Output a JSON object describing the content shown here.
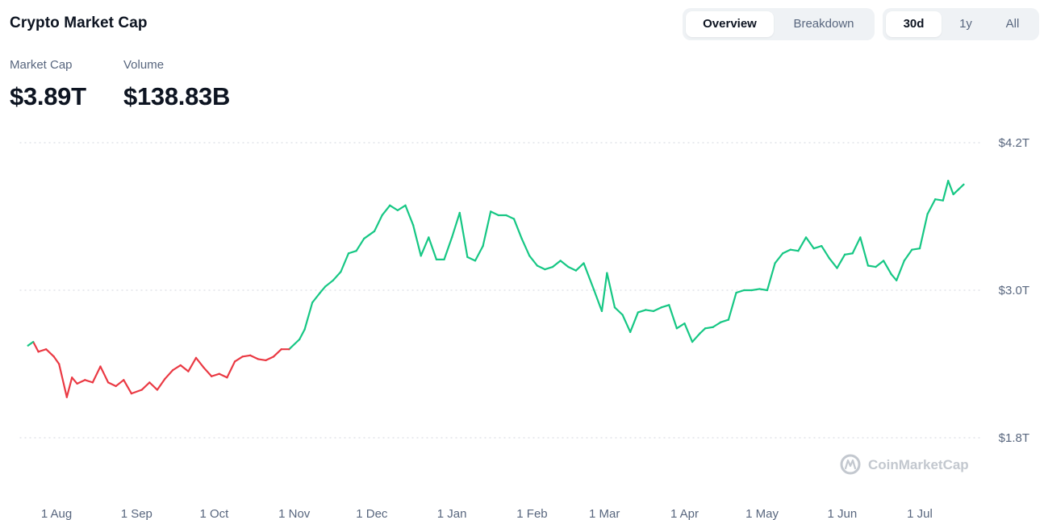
{
  "header": {
    "title": "Crypto Market Cap"
  },
  "tabs": {
    "view": [
      {
        "label": "Overview",
        "active": true
      },
      {
        "label": "Breakdown",
        "active": false
      }
    ],
    "range": [
      {
        "label": "30d",
        "active": true
      },
      {
        "label": "1y",
        "active": false
      },
      {
        "label": "All",
        "active": false
      }
    ]
  },
  "metrics": {
    "market_cap_label": "Market Cap",
    "market_cap_value": "$3.89T",
    "volume_label": "Volume",
    "volume_value": "$138.83B"
  },
  "watermark": {
    "text": "CoinMarketCap",
    "icon": "coinmarketcap-logo-icon"
  },
  "colors": {
    "up": "#16c784",
    "down": "#ea3943",
    "grid": "#d9dde3"
  },
  "chart_data": {
    "type": "line",
    "title": "",
    "xlabel": "",
    "ylabel": "",
    "unit": "USD",
    "y_ticks": [
      {
        "value": 4.2,
        "label": "$4.2T"
      },
      {
        "value": 3.0,
        "label": "$3.0T"
      },
      {
        "value": 1.8,
        "label": "$1.8T"
      }
    ],
    "ylim": [
      1.8,
      4.2
    ],
    "x_ticks": [
      {
        "date": "2024-08-01",
        "label": "1 Aug"
      },
      {
        "date": "2024-09-01",
        "label": "1 Sep"
      },
      {
        "date": "2024-10-01",
        "label": "1 Oct"
      },
      {
        "date": "2024-11-01",
        "label": "1 Nov"
      },
      {
        "date": "2024-12-01",
        "label": "1 Dec"
      },
      {
        "date": "2025-01-01",
        "label": "1 Jan"
      },
      {
        "date": "2025-02-01",
        "label": "1 Feb"
      },
      {
        "date": "2025-03-01",
        "label": "1 Mar"
      },
      {
        "date": "2025-04-01",
        "label": "1 Apr"
      },
      {
        "date": "2025-05-01",
        "label": "1 May"
      },
      {
        "date": "2025-06-01",
        "label": "1 Jun"
      },
      {
        "date": "2025-07-01",
        "label": "1 Jul"
      }
    ],
    "grid": true,
    "reference_value": 2.55,
    "series": [
      {
        "name": "",
        "x": [
          "2024-07-21",
          "2024-07-23",
          "2024-07-25",
          "2024-07-28",
          "2024-07-31",
          "2024-08-02",
          "2024-08-05",
          "2024-08-07",
          "2024-08-09",
          "2024-08-12",
          "2024-08-15",
          "2024-08-18",
          "2024-08-21",
          "2024-08-24",
          "2024-08-27",
          "2024-08-30",
          "2024-09-03",
          "2024-09-06",
          "2024-09-09",
          "2024-09-12",
          "2024-09-15",
          "2024-09-18",
          "2024-09-21",
          "2024-09-24",
          "2024-09-27",
          "2024-09-30",
          "2024-10-03",
          "2024-10-06",
          "2024-10-09",
          "2024-10-12",
          "2024-10-15",
          "2024-10-18",
          "2024-10-21",
          "2024-10-24",
          "2024-10-27",
          "2024-10-30",
          "2024-11-03",
          "2024-11-05",
          "2024-11-08",
          "2024-11-11",
          "2024-11-13",
          "2024-11-16",
          "2024-11-19",
          "2024-11-22",
          "2024-11-25",
          "2024-11-28",
          "2024-12-02",
          "2024-12-05",
          "2024-12-08",
          "2024-12-11",
          "2024-12-14",
          "2024-12-17",
          "2024-12-20",
          "2024-12-23",
          "2024-12-26",
          "2024-12-29",
          "2025-01-01",
          "2025-01-04",
          "2025-01-07",
          "2025-01-10",
          "2025-01-13",
          "2025-01-16",
          "2025-01-19",
          "2025-01-22",
          "2025-01-25",
          "2025-01-28",
          "2025-01-31",
          "2025-02-03",
          "2025-02-06",
          "2025-02-09",
          "2025-02-12",
          "2025-02-15",
          "2025-02-18",
          "2025-02-21",
          "2025-02-25",
          "2025-02-28",
          "2025-03-02",
          "2025-03-05",
          "2025-03-08",
          "2025-03-11",
          "2025-03-14",
          "2025-03-17",
          "2025-03-20",
          "2025-03-23",
          "2025-03-26",
          "2025-03-29",
          "2025-04-01",
          "2025-04-04",
          "2025-04-07",
          "2025-04-09",
          "2025-04-12",
          "2025-04-15",
          "2025-04-18",
          "2025-04-21",
          "2025-04-24",
          "2025-04-27",
          "2025-04-30",
          "2025-05-03",
          "2025-05-06",
          "2025-05-09",
          "2025-05-12",
          "2025-05-15",
          "2025-05-18",
          "2025-05-21",
          "2025-05-24",
          "2025-05-27",
          "2025-05-30",
          "2025-06-02",
          "2025-06-05",
          "2025-06-08",
          "2025-06-11",
          "2025-06-14",
          "2025-06-17",
          "2025-06-20",
          "2025-06-22",
          "2025-06-25",
          "2025-06-28",
          "2025-07-01",
          "2025-07-04",
          "2025-07-07",
          "2025-07-10",
          "2025-07-12",
          "2025-07-14",
          "2025-07-16",
          "2025-07-18"
        ],
        "values": [
          2.55,
          2.58,
          2.5,
          2.52,
          2.46,
          2.4,
          2.13,
          2.29,
          2.24,
          2.27,
          2.25,
          2.38,
          2.25,
          2.22,
          2.27,
          2.16,
          2.19,
          2.25,
          2.19,
          2.28,
          2.35,
          2.39,
          2.34,
          2.45,
          2.37,
          2.3,
          2.32,
          2.29,
          2.42,
          2.46,
          2.47,
          2.44,
          2.43,
          2.46,
          2.52,
          2.52,
          2.6,
          2.68,
          2.9,
          2.98,
          3.03,
          3.08,
          3.15,
          3.3,
          3.32,
          3.42,
          3.48,
          3.61,
          3.69,
          3.65,
          3.69,
          3.53,
          3.28,
          3.43,
          3.25,
          3.25,
          3.43,
          3.63,
          3.27,
          3.24,
          3.36,
          3.64,
          3.61,
          3.61,
          3.58,
          3.42,
          3.28,
          3.2,
          3.17,
          3.19,
          3.24,
          3.19,
          3.16,
          3.22,
          3.0,
          2.83,
          3.14,
          2.86,
          2.8,
          2.66,
          2.82,
          2.84,
          2.83,
          2.86,
          2.88,
          2.69,
          2.73,
          2.58,
          2.65,
          2.69,
          2.7,
          2.74,
          2.76,
          2.98,
          3.0,
          3.0,
          3.01,
          3.0,
          3.22,
          3.3,
          3.33,
          3.32,
          3.43,
          3.34,
          3.36,
          3.26,
          3.18,
          3.29,
          3.3,
          3.43,
          3.2,
          3.19,
          3.24,
          3.13,
          3.08,
          3.24,
          3.33,
          3.34,
          3.62,
          3.74,
          3.73,
          3.89,
          3.78,
          3.82,
          3.86
        ]
      }
    ]
  }
}
